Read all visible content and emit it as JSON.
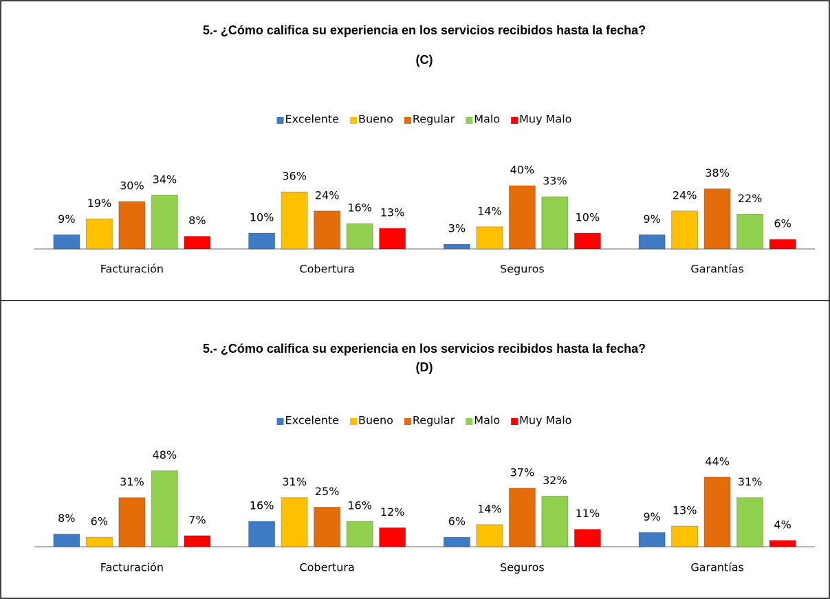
{
  "chart_data": [
    {
      "type": "bar",
      "title": "5.- ¿Cómo califica su experiencia en los servicios recibidos hasta la fecha?",
      "subtitle": "(C)",
      "legend": "top",
      "categories": [
        "Facturación",
        "Cobertura",
        "Seguros",
        "Garantías"
      ],
      "series": [
        {
          "name": "Excelente",
          "color": "#3e7bc4",
          "values": [
            9,
            10,
            3,
            9
          ],
          "value_labels": [
            "9%",
            "10%",
            "3%",
            "9%"
          ]
        },
        {
          "name": "Bueno",
          "color": "#ffc000",
          "values": [
            19,
            36,
            14,
            24
          ],
          "value_labels": [
            "19%",
            "36%",
            "14%",
            "24%"
          ]
        },
        {
          "name": "Regular",
          "color": "#e46c0a",
          "values": [
            30,
            24,
            40,
            38
          ],
          "value_labels": [
            "30%",
            "24%",
            "40%",
            "38%"
          ]
        },
        {
          "name": "Malo",
          "color": "#92d050",
          "values": [
            34,
            16,
            33,
            22
          ],
          "value_labels": [
            "34%",
            "16%",
            "33%",
            "22%"
          ]
        },
        {
          "name": "Muy Malo",
          "color": "#ff0000",
          "values": [
            8,
            13,
            10,
            6
          ],
          "value_labels": [
            "8%",
            "13%",
            "10%",
            "6%"
          ]
        }
      ]
    },
    {
      "type": "bar",
      "title": "5.- ¿Cómo califica su experiencia en los servicios recibidos hasta la fecha?",
      "subtitle": "(D)",
      "legend": "top",
      "categories": [
        "Facturación",
        "Cobertura",
        "Seguros",
        "Garantías"
      ],
      "series": [
        {
          "name": "Excelente",
          "color": "#3e7bc4",
          "values": [
            8,
            16,
            6,
            9
          ],
          "value_labels": [
            "8%",
            "16%",
            "6%",
            "9%"
          ]
        },
        {
          "name": "Bueno",
          "color": "#ffc000",
          "values": [
            6,
            31,
            14,
            13
          ],
          "value_labels": [
            "6%",
            "31%",
            "14%",
            "13%"
          ]
        },
        {
          "name": "Regular",
          "color": "#e46c0a",
          "values": [
            31,
            25,
            37,
            44
          ],
          "value_labels": [
            "31%",
            "25%",
            "37%",
            "44%"
          ]
        },
        {
          "name": "Malo",
          "color": "#92d050",
          "values": [
            48,
            16,
            32,
            31
          ],
          "value_labels": [
            "48%",
            "16%",
            "32%",
            "31%"
          ]
        },
        {
          "name": "Muy Malo",
          "color": "#ff0000",
          "values": [
            7,
            12,
            11,
            4
          ],
          "value_labels": [
            "7%",
            "12%",
            "11%",
            "4%"
          ]
        }
      ]
    }
  ]
}
